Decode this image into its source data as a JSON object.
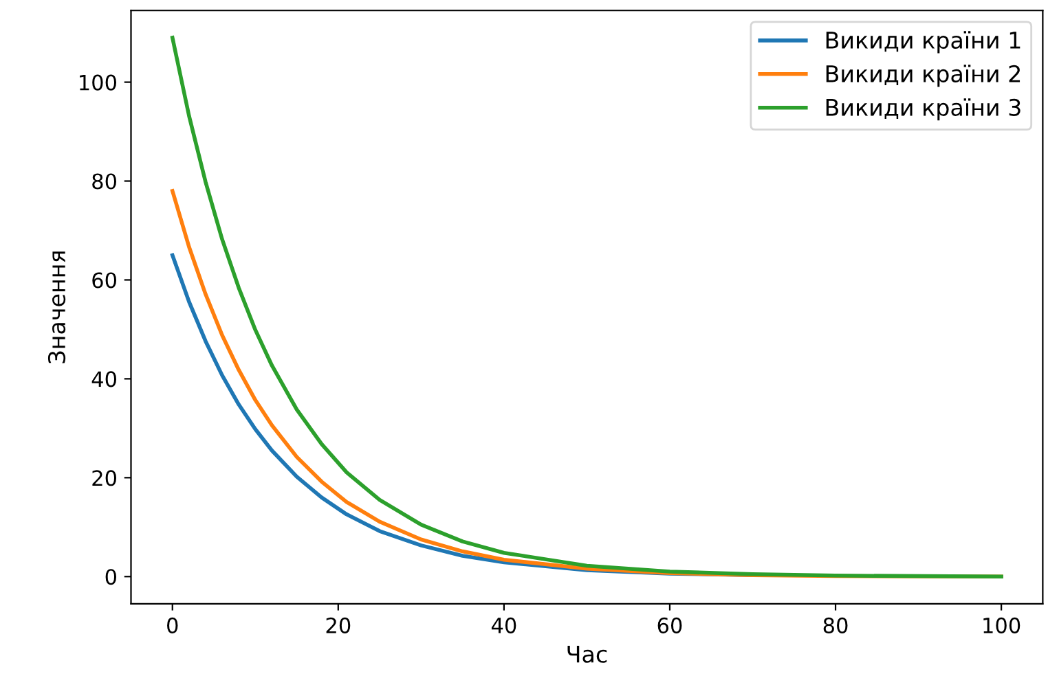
{
  "chart_data": {
    "type": "line",
    "xlabel": "Час",
    "ylabel": "Значення",
    "x": [
      0,
      2,
      4,
      6,
      8,
      10,
      12,
      15,
      18,
      21,
      25,
      30,
      35,
      40,
      50,
      60,
      70,
      80,
      100
    ],
    "series": [
      {
        "name": "Викиди країни 1",
        "color": "#1f77b4",
        "values": [
          65,
          55.6,
          47.6,
          40.7,
          34.8,
          29.8,
          25.5,
          20.2,
          16.0,
          12.6,
          9.2,
          6.3,
          4.2,
          2.9,
          1.3,
          0.6,
          0.3,
          null,
          null
        ]
      },
      {
        "name": "Викиди країни 2",
        "color": "#ff7f0e",
        "values": [
          78,
          66.7,
          57.1,
          48.8,
          41.8,
          35.7,
          30.6,
          24.2,
          19.2,
          15.1,
          11.1,
          7.5,
          5.1,
          3.4,
          1.6,
          0.7,
          0.3,
          0.1,
          0
        ]
      },
      {
        "name": "Викиди країни 3",
        "color": "#2ca02c",
        "values": [
          109,
          93.2,
          79.8,
          68.2,
          58.4,
          49.9,
          42.7,
          33.8,
          26.8,
          21.1,
          15.5,
          10.5,
          7.1,
          4.8,
          2.2,
          1.0,
          0.5,
          0.2,
          0
        ]
      }
    ],
    "xlim": [
      -5,
      105
    ],
    "ylim": [
      -5.5,
      114.5
    ],
    "xticks": [
      0,
      20,
      40,
      60,
      80,
      100
    ],
    "yticks": [
      0,
      20,
      40,
      60,
      80,
      100
    ],
    "legend": "top right",
    "grid": false,
    "line_style": "solid",
    "marker": "none"
  }
}
